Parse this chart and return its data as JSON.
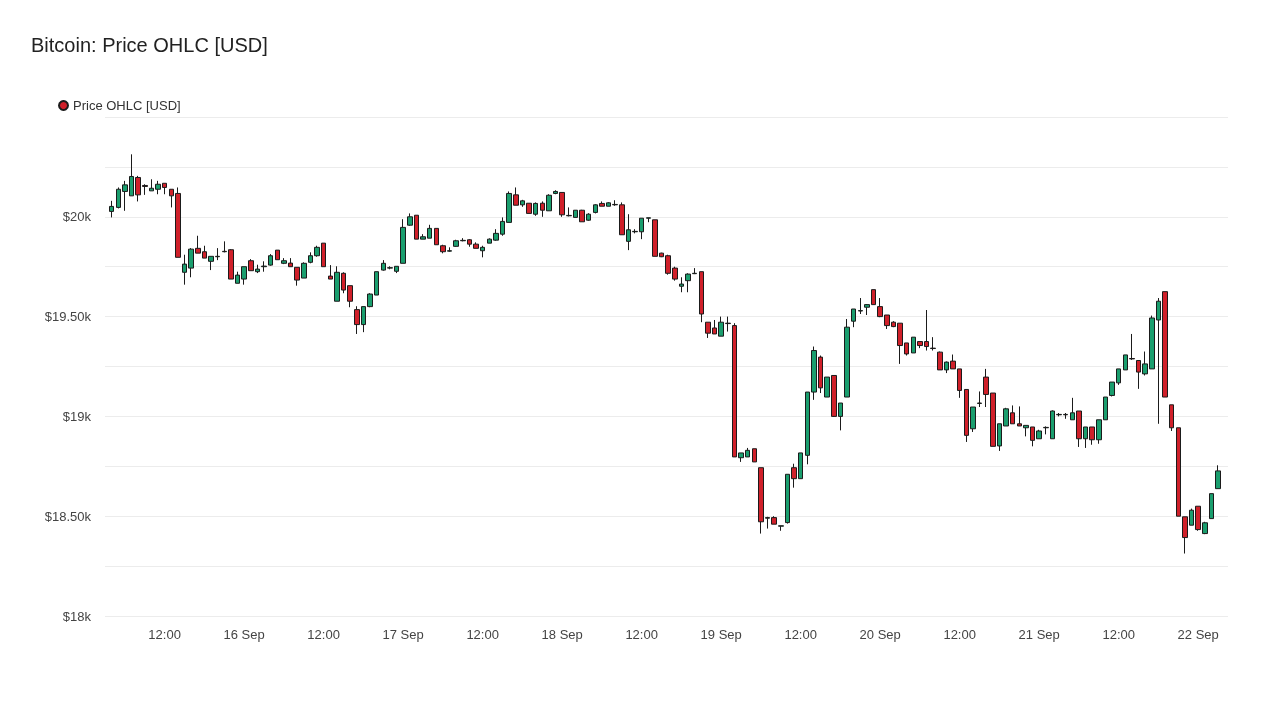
{
  "chart_data": {
    "type": "candlestick",
    "title": "Bitcoin: Price OHLC [USD]",
    "legend": "top left",
    "grid": "y",
    "xlim": [
      "--09-15T03:00",
      "--09-22T04:30"
    ],
    "xticks": [
      {
        "value": "--09-15T12:00",
        "label": "12:00"
      },
      {
        "value": "--09-16",
        "label": "16 Sep"
      },
      {
        "value": "--09-16T12:00",
        "label": "12:00"
      },
      {
        "value": "--09-17",
        "label": "17 Sep"
      },
      {
        "value": "--09-17T12:00",
        "label": "12:00"
      },
      {
        "value": "--09-18",
        "label": "18 Sep"
      },
      {
        "value": "--09-18T12:00",
        "label": "12:00"
      },
      {
        "value": "--09-19",
        "label": "19 Sep"
      },
      {
        "value": "--09-19T12:00",
        "label": "12:00"
      },
      {
        "value": "--09-20",
        "label": "20 Sep"
      },
      {
        "value": "--09-20T12:00",
        "label": "12:00"
      },
      {
        "value": "--09-21",
        "label": "21 Sep"
      },
      {
        "value": "--09-21T12:00",
        "label": "12:00"
      },
      {
        "value": "--09-22",
        "label": "22 Sep"
      }
    ],
    "ylim": [
      18000,
      20500
    ],
    "yticks": [
      {
        "value": 18000,
        "label": "$18k"
      },
      {
        "value": 18250,
        "label": null
      },
      {
        "value": 18500,
        "label": "$18.50k"
      },
      {
        "value": 18750,
        "label": null
      },
      {
        "value": 19000,
        "label": "$19k"
      },
      {
        "value": 19250,
        "label": null
      },
      {
        "value": 19500,
        "label": "$19.50k"
      },
      {
        "value": 19750,
        "label": null
      },
      {
        "value": 20000,
        "label": "$20k"
      },
      {
        "value": 20250,
        "label": null
      },
      {
        "value": 20500,
        "label": null
      }
    ],
    "x": [
      "--09-15T04:00",
      "--09-15T05:00",
      "--09-15T06:00",
      "--09-15T07:00",
      "--09-15T08:00",
      "--09-15T09:00",
      "--09-15T10:00",
      "--09-15T11:00",
      "--09-15T12:00",
      "--09-15T13:00",
      "--09-15T14:00",
      "--09-15T15:00",
      "--09-15T16:00",
      "--09-15T17:00",
      "--09-15T18:00",
      "--09-15T19:00",
      "--09-15T20:00",
      "--09-15T21:00",
      "--09-15T22:00",
      "--09-15T23:00",
      "--09-16T00:00",
      "--09-16T01:00",
      "--09-16T02:00",
      "--09-16T03:00",
      "--09-16T04:00",
      "--09-16T05:00",
      "--09-16T06:00",
      "--09-16T07:00",
      "--09-16T08:00",
      "--09-16T09:00",
      "--09-16T10:00",
      "--09-16T11:00",
      "--09-16T12:00",
      "--09-16T13:00",
      "--09-16T14:00",
      "--09-16T15:00",
      "--09-16T16:00",
      "--09-16T17:00",
      "--09-16T18:00",
      "--09-16T19:00",
      "--09-16T20:00",
      "--09-16T21:00",
      "--09-16T22:00",
      "--09-16T23:00",
      "--09-17T00:00",
      "--09-17T01:00",
      "--09-17T02:00",
      "--09-17T03:00",
      "--09-17T04:00",
      "--09-17T05:00",
      "--09-17T06:00",
      "--09-17T07:00",
      "--09-17T08:00",
      "--09-17T09:00",
      "--09-17T10:00",
      "--09-17T11:00",
      "--09-17T12:00",
      "--09-17T13:00",
      "--09-17T14:00",
      "--09-17T15:00",
      "--09-17T16:00",
      "--09-17T17:00",
      "--09-17T18:00",
      "--09-17T19:00",
      "--09-17T20:00",
      "--09-17T21:00",
      "--09-17T22:00",
      "--09-17T23:00",
      "--09-18T00:00",
      "--09-18T01:00",
      "--09-18T02:00",
      "--09-18T03:00",
      "--09-18T04:00",
      "--09-18T05:00",
      "--09-18T06:00",
      "--09-18T07:00",
      "--09-18T08:00",
      "--09-18T09:00",
      "--09-18T10:00",
      "--09-18T11:00",
      "--09-18T12:00",
      "--09-18T13:00",
      "--09-18T14:00",
      "--09-18T15:00",
      "--09-18T16:00",
      "--09-18T17:00",
      "--09-18T18:00",
      "--09-18T19:00",
      "--09-18T20:00",
      "--09-18T21:00",
      "--09-18T22:00",
      "--09-18T23:00",
      "--09-19T00:00",
      "--09-19T01:00",
      "--09-19T02:00",
      "--09-19T03:00",
      "--09-19T04:00",
      "--09-19T05:00",
      "--09-19T06:00",
      "--09-19T07:00",
      "--09-19T08:00",
      "--09-19T09:00",
      "--09-19T10:00",
      "--09-19T11:00",
      "--09-19T12:00",
      "--09-19T13:00",
      "--09-19T14:00",
      "--09-19T15:00",
      "--09-19T16:00",
      "--09-19T17:00",
      "--09-19T18:00",
      "--09-19T19:00",
      "--09-19T20:00",
      "--09-19T21:00",
      "--09-19T22:00",
      "--09-19T23:00",
      "--09-20T00:00",
      "--09-20T01:00",
      "--09-20T02:00",
      "--09-20T03:00",
      "--09-20T04:00",
      "--09-20T05:00",
      "--09-20T06:00",
      "--09-20T07:00",
      "--09-20T08:00",
      "--09-20T09:00",
      "--09-20T10:00",
      "--09-20T11:00",
      "--09-20T12:00",
      "--09-20T13:00",
      "--09-20T14:00",
      "--09-20T15:00",
      "--09-20T16:00",
      "--09-20T17:00",
      "--09-20T18:00",
      "--09-20T19:00",
      "--09-20T20:00",
      "--09-20T21:00",
      "--09-20T22:00",
      "--09-20T23:00",
      "--09-21T00:00",
      "--09-21T01:00",
      "--09-21T02:00",
      "--09-21T03:00",
      "--09-21T04:00",
      "--09-21T05:00",
      "--09-21T06:00",
      "--09-21T07:00",
      "--09-21T08:00",
      "--09-21T09:00",
      "--09-21T10:00",
      "--09-21T11:00",
      "--09-21T12:00",
      "--09-21T13:00",
      "--09-21T14:00",
      "--09-21T15:00",
      "--09-21T16:00",
      "--09-21T17:00",
      "--09-21T18:00",
      "--09-21T19:00",
      "--09-21T20:00",
      "--09-21T21:00",
      "--09-21T22:00",
      "--09-21T23:00",
      "--09-22T00:00",
      "--09-22T01:00",
      "--09-22T02:00",
      "--09-22T03:00"
    ],
    "series": [
      {
        "name": "Price OHLC [USD]",
        "color": "#d0202a",
        "colors": [
          "#1a9e6e",
          "#1a9e6e",
          "#1a9e6e",
          "#1a9e6e",
          "#d0202a",
          "#d0202a",
          "#1a9e6e",
          "#1a9e6e",
          "#d0202a",
          "#d0202a",
          "#d0202a",
          "#1a9e6e",
          "#1a9e6e",
          "#d0202a",
          "#d0202a",
          "#1a9e6e",
          "#1a9e6e",
          "#1a9e6e",
          "#d0202a",
          "#1a9e6e",
          "#1a9e6e",
          "#d0202a",
          "#1a9e6e",
          "#1a9e6e",
          "#1a9e6e",
          "#d0202a",
          "#1a9e6e",
          "#d0202a",
          "#d0202a",
          "#1a9e6e",
          "#1a9e6e",
          "#1a9e6e",
          "#d0202a",
          "#d0202a",
          "#1a9e6e",
          "#d0202a",
          "#d0202a",
          "#d0202a",
          "#1a9e6e",
          "#1a9e6e",
          "#1a9e6e",
          "#1a9e6e",
          "#1a9e6e",
          "#1a9e6e",
          "#1a9e6e",
          "#1a9e6e",
          "#d0202a",
          "#1a9e6e",
          "#1a9e6e",
          "#d0202a",
          "#d0202a",
          "#1a9e6e",
          "#1a9e6e",
          "#1a9e6e",
          "#d0202a",
          "#d0202a",
          "#1a9e6e",
          "#1a9e6e",
          "#1a9e6e",
          "#1a9e6e",
          "#1a9e6e",
          "#d0202a",
          "#1a9e6e",
          "#d0202a",
          "#1a9e6e",
          "#d0202a",
          "#1a9e6e",
          "#1a9e6e",
          "#d0202a",
          "#1a9e6e",
          "#1a9e6e",
          "#d0202a",
          "#1a9e6e",
          "#1a9e6e",
          "#d0202a",
          "#1a9e6e",
          "#1a9e6e",
          "#d0202a",
          "#1a9e6e",
          "#1a9e6e",
          "#1a9e6e",
          "#1a9e6e",
          "#d0202a",
          "#d0202a",
          "#d0202a",
          "#d0202a",
          "#1a9e6e",
          "#1a9e6e",
          "#1a9e6e",
          "#d0202a",
          "#d0202a",
          "#d0202a",
          "#1a9e6e",
          "#1a9e6e",
          "#d0202a",
          "#1a9e6e",
          "#1a9e6e",
          "#d0202a",
          "#d0202a",
          "#1a9e6e",
          "#d0202a",
          "#1a9e6e",
          "#1a9e6e",
          "#d0202a",
          "#1a9e6e",
          "#1a9e6e",
          "#1a9e6e",
          "#d0202a",
          "#1a9e6e",
          "#d0202a",
          "#1a9e6e",
          "#1a9e6e",
          "#1a9e6e",
          "#1a9e6e",
          "#1a9e6e",
          "#d0202a",
          "#d0202a",
          "#d0202a",
          "#d0202a",
          "#d0202a",
          "#d0202a",
          "#1a9e6e",
          "#d0202a",
          "#d0202a",
          "#d0202a",
          "#d0202a",
          "#1a9e6e",
          "#d0202a",
          "#d0202a",
          "#d0202a",
          "#1a9e6e",
          "#1a9e6e",
          "#d0202a",
          "#d0202a",
          "#1a9e6e",
          "#1a9e6e",
          "#d0202a",
          "#d0202a",
          "#1a9e6e",
          "#d0202a",
          "#1a9e6e",
          "#1a9e6e",
          "#1a9e6e",
          "#1a9e6e",
          "#1a9e6e",
          "#1a9e6e",
          "#d0202a",
          "#1a9e6e",
          "#d0202a",
          "#1a9e6e",
          "#1a9e6e",
          "#1a9e6e",
          "#1a9e6e",
          "#1a9e6e",
          "#d0202a",
          "#d0202a",
          "#1a9e6e",
          "#1a9e6e",
          "#1a9e6e",
          "#d0202a",
          "#d0202a",
          "#d0202a",
          "#d0202a",
          "#1a9e6e",
          "#d0202a",
          "#1a9e6e",
          "#1a9e6e",
          "#1a9e6e"
        ],
        "ohlc": [
          [
            20027,
            20080,
            19997,
            20052
          ],
          [
            20047,
            20147,
            20042,
            20138
          ],
          [
            20127,
            20180,
            20030,
            20160
          ],
          [
            20105,
            20313,
            20105,
            20202
          ],
          [
            20197,
            20205,
            20077,
            20110
          ],
          [
            20157,
            20163,
            20110,
            20152
          ],
          [
            20130,
            20188,
            20130,
            20143
          ],
          [
            20138,
            20180,
            20113,
            20163
          ],
          [
            20168,
            20168,
            20113,
            20147
          ],
          [
            20138,
            20138,
            20047,
            20105
          ],
          [
            20117,
            20147,
            19797,
            19797
          ],
          [
            19722,
            19810,
            19660,
            19763
          ],
          [
            19743,
            19843,
            19697,
            19838
          ],
          [
            19842,
            19905,
            19818,
            19818
          ],
          [
            19825,
            19855,
            19793,
            19793
          ],
          [
            19777,
            19802,
            19733,
            19802
          ],
          [
            19800,
            19843,
            19783,
            19802
          ],
          [
            19825,
            19877,
            19822,
            19827
          ],
          [
            19835,
            19838,
            19688,
            19688
          ],
          [
            19667,
            19725,
            19667,
            19708
          ],
          [
            19688,
            19750,
            19660,
            19750
          ],
          [
            19780,
            19788,
            19730,
            19730
          ],
          [
            19725,
            19760,
            19718,
            19738
          ],
          [
            19750,
            19777,
            19725,
            19753
          ],
          [
            19758,
            19813,
            19755,
            19805
          ],
          [
            19833,
            19833,
            19785,
            19785
          ],
          [
            19767,
            19793,
            19763,
            19780
          ],
          [
            19768,
            19793,
            19750,
            19750
          ],
          [
            19747,
            19747,
            19655,
            19683
          ],
          [
            19693,
            19772,
            19693,
            19767
          ],
          [
            19772,
            19822,
            19767,
            19805
          ],
          [
            19805,
            19855,
            19800,
            19847
          ],
          [
            19868,
            19868,
            19750,
            19750
          ],
          [
            19703,
            19758,
            19688,
            19688
          ],
          [
            19577,
            19752,
            19577,
            19722
          ],
          [
            19717,
            19722,
            19617,
            19633
          ],
          [
            19655,
            19655,
            19547,
            19577
          ],
          [
            19535,
            19552,
            19413,
            19460
          ],
          [
            19460,
            19550,
            19422,
            19550
          ],
          [
            19550,
            19617,
            19547,
            19613
          ],
          [
            19608,
            19725,
            19608,
            19725
          ],
          [
            19733,
            19783,
            19730,
            19767
          ],
          [
            19743,
            19752,
            19737,
            19745
          ],
          [
            19727,
            19752,
            19718,
            19752
          ],
          [
            19767,
            19988,
            19767,
            19947
          ],
          [
            19958,
            20017,
            19955,
            20000
          ],
          [
            20008,
            20008,
            19888,
            19888
          ],
          [
            19888,
            19913,
            19888,
            19900
          ],
          [
            19893,
            19960,
            19893,
            19942
          ],
          [
            19942,
            19942,
            19860,
            19860
          ],
          [
            19855,
            19860,
            19817,
            19825
          ],
          [
            19828,
            19847,
            19825,
            19830
          ],
          [
            19852,
            19885,
            19850,
            19880
          ],
          [
            19880,
            19893,
            19877,
            19882
          ],
          [
            19885,
            19888,
            19850,
            19863
          ],
          [
            19863,
            19872,
            19842,
            19842
          ],
          [
            19830,
            19855,
            19797,
            19847
          ],
          [
            19868,
            19892,
            19868,
            19888
          ],
          [
            19883,
            19938,
            19880,
            19917
          ],
          [
            19913,
            19997,
            19905,
            19977
          ],
          [
            19972,
            20127,
            19972,
            20117
          ],
          [
            20110,
            20147,
            20058,
            20058
          ],
          [
            20060,
            20085,
            20050,
            20080
          ],
          [
            20068,
            20068,
            20017,
            20017
          ],
          [
            20013,
            20072,
            20005,
            20067
          ],
          [
            20068,
            20077,
            20000,
            20033
          ],
          [
            20030,
            20113,
            20030,
            20108
          ],
          [
            20117,
            20133,
            20113,
            20127
          ],
          [
            20122,
            20122,
            20000,
            20010
          ],
          [
            20005,
            20047,
            20002,
            20007
          ],
          [
            19997,
            20033,
            19997,
            20033
          ],
          [
            20033,
            20035,
            19975,
            19975
          ],
          [
            19983,
            20018,
            19980,
            20013
          ],
          [
            20022,
            20063,
            20017,
            20060
          ],
          [
            20067,
            20077,
            20053,
            20053
          ],
          [
            20053,
            20073,
            20053,
            20070
          ],
          [
            20060,
            20083,
            20055,
            20062
          ],
          [
            20060,
            20072,
            19910,
            19910
          ],
          [
            19877,
            20013,
            19833,
            19935
          ],
          [
            19925,
            19938,
            19917,
            19927
          ],
          [
            19925,
            19993,
            19888,
            19993
          ],
          [
            19993,
            19995,
            19973,
            19995
          ],
          [
            19985,
            19985,
            19802,
            19802
          ],
          [
            19818,
            19820,
            19798,
            19800
          ],
          [
            19805,
            19810,
            19710,
            19717
          ],
          [
            19743,
            19750,
            19680,
            19688
          ],
          [
            19652,
            19697,
            19622,
            19663
          ],
          [
            19680,
            19717,
            19622,
            19713
          ],
          [
            19715,
            19743,
            19713,
            19717
          ],
          [
            19725,
            19725,
            19472,
            19513
          ],
          [
            19472,
            19472,
            19393,
            19417
          ],
          [
            19443,
            19483,
            19413,
            19413
          ],
          [
            19402,
            19500,
            19402,
            19472
          ],
          [
            19465,
            19500,
            19425,
            19467
          ],
          [
            19455,
            19467,
            18797,
            18797
          ],
          [
            18793,
            18817,
            18772,
            18817
          ],
          [
            18797,
            18842,
            18797,
            18830
          ],
          [
            18838,
            18838,
            18772,
            18772
          ],
          [
            18743,
            18743,
            18413,
            18472
          ],
          [
            18490,
            18497,
            18438,
            18493
          ],
          [
            18493,
            18500,
            18460,
            18460
          ],
          [
            18450,
            18452,
            18427,
            18452
          ],
          [
            18468,
            18710,
            18463,
            18710
          ],
          [
            18743,
            18763,
            18643,
            18688
          ],
          [
            18688,
            18817,
            18688,
            18817
          ],
          [
            18805,
            19122,
            18760,
            19122
          ],
          [
            19122,
            19350,
            19083,
            19330
          ],
          [
            19297,
            19305,
            19117,
            19143
          ],
          [
            19097,
            19197,
            19097,
            19197
          ],
          [
            19205,
            19205,
            18997,
            19000
          ],
          [
            19000,
            19067,
            18930,
            19067
          ],
          [
            19097,
            19488,
            19097,
            19447
          ],
          [
            19477,
            19538,
            19447,
            19538
          ],
          [
            19528,
            19593,
            19513,
            19530
          ],
          [
            19547,
            19563,
            19508,
            19560
          ],
          [
            19635,
            19635,
            19560,
            19560
          ],
          [
            19550,
            19593,
            19497,
            19500
          ],
          [
            19508,
            19508,
            19438,
            19455
          ],
          [
            19472,
            19477,
            19447,
            19450
          ],
          [
            19467,
            19467,
            19263,
            19355
          ],
          [
            19368,
            19368,
            19305,
            19313
          ],
          [
            19318,
            19397,
            19318,
            19397
          ],
          [
            19375,
            19375,
            19342,
            19355
          ],
          [
            19375,
            19533,
            19330,
            19350
          ],
          [
            19342,
            19397,
            19330,
            19340
          ],
          [
            19322,
            19325,
            19233,
            19233
          ],
          [
            19233,
            19275,
            19217,
            19272
          ],
          [
            19277,
            19310,
            19238,
            19238
          ],
          [
            19238,
            19238,
            19093,
            19130
          ],
          [
            19135,
            19135,
            18872,
            18905
          ],
          [
            18938,
            19047,
            18922,
            19047
          ],
          [
            19065,
            19125,
            19047,
            19067
          ],
          [
            19197,
            19238,
            19047,
            19110
          ],
          [
            19117,
            19117,
            18850,
            18850
          ],
          [
            18852,
            18963,
            18827,
            18963
          ],
          [
            18952,
            19043,
            18952,
            19038
          ],
          [
            19018,
            19055,
            18963,
            18963
          ],
          [
            18963,
            19050,
            18952,
            18952
          ],
          [
            18943,
            18955,
            18900,
            18955
          ],
          [
            18947,
            18947,
            18850,
            18880
          ],
          [
            18888,
            18933,
            18888,
            18927
          ],
          [
            18943,
            18950,
            18910,
            18945
          ],
          [
            18888,
            19030,
            18888,
            19027
          ],
          [
            19008,
            19017,
            19000,
            19010
          ],
          [
            19008,
            19017,
            18988,
            19010
          ],
          [
            18983,
            19093,
            18983,
            19018
          ],
          [
            19027,
            19027,
            18847,
            18888
          ],
          [
            18888,
            18947,
            18842,
            18947
          ],
          [
            18947,
            18947,
            18858,
            18883
          ],
          [
            18883,
            18983,
            18863,
            18983
          ],
          [
            18983,
            19097,
            18983,
            19097
          ],
          [
            19105,
            19172,
            19100,
            19172
          ],
          [
            19168,
            19238,
            19158,
            19238
          ],
          [
            19233,
            19308,
            19233,
            19308
          ],
          [
            19290,
            19413,
            19283,
            19288
          ],
          [
            19280,
            19280,
            19138,
            19222
          ],
          [
            19213,
            19325,
            19205,
            19263
          ],
          [
            19238,
            19505,
            19238,
            19493
          ],
          [
            19483,
            19593,
            18963,
            19577
          ],
          [
            19625,
            19625,
            19097,
            19097
          ],
          [
            19058,
            19058,
            18927,
            18943
          ],
          [
            18943,
            18943,
            18500,
            18500
          ],
          [
            18497,
            18497,
            18313,
            18393
          ],
          [
            18455,
            18538,
            18455,
            18530
          ],
          [
            18550,
            18550,
            18427,
            18433
          ],
          [
            18413,
            18472,
            18410,
            18467
          ],
          [
            18488,
            18613,
            18488,
            18613
          ],
          [
            18638,
            18755,
            18638,
            18727
          ]
        ]
      }
    ]
  }
}
